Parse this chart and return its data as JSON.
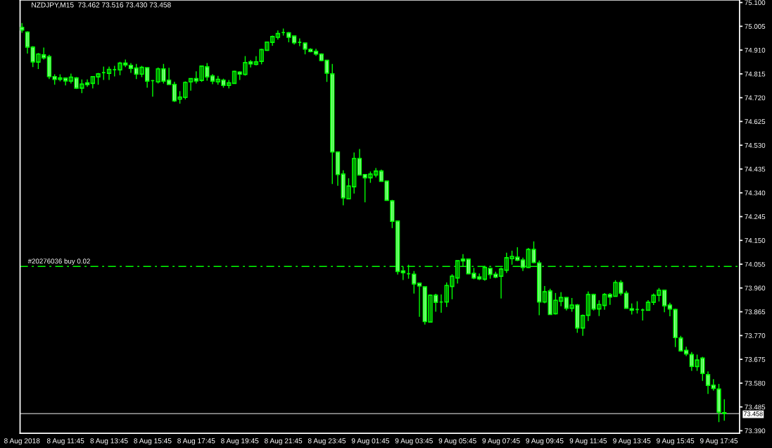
{
  "chart_data": {
    "type": "candlestick",
    "title": "NZDJPY,M15  73.462 73.516 73.430 73.458",
    "color": "#00ff00",
    "categories": [
      "8 Aug 2018",
      null,
      null,
      null,
      null,
      null,
      null,
      null,
      "8 Aug 11:45",
      null,
      null,
      null,
      null,
      null,
      null,
      null,
      "8 Aug 13:45",
      null,
      null,
      null,
      null,
      null,
      null,
      null,
      "8 Aug 15:45",
      null,
      null,
      null,
      null,
      null,
      null,
      null,
      "8 Aug 17:45",
      null,
      null,
      null,
      null,
      null,
      null,
      null,
      "8 Aug 19:45",
      null,
      null,
      null,
      null,
      null,
      null,
      null,
      "8 Aug 21:45",
      null,
      null,
      null,
      null,
      null,
      null,
      null,
      "8 Aug 23:45",
      null,
      null,
      null,
      null,
      null,
      null,
      null,
      "9 Aug 01:45",
      null,
      null,
      null,
      null,
      null,
      null,
      null,
      "9 Aug 03:45",
      null,
      null,
      null,
      null,
      null,
      null,
      null,
      "9 Aug 05:45",
      null,
      null,
      null,
      null,
      null,
      null,
      null,
      "9 Aug 07:45",
      null,
      null,
      null,
      null,
      null,
      null,
      null,
      "9 Aug 09:45",
      null,
      null,
      null,
      null,
      null,
      null,
      null,
      "9 Aug 11:45",
      null,
      null,
      null,
      null,
      null,
      null,
      null,
      "9 Aug 13:45",
      null,
      null,
      null,
      null,
      null,
      null,
      null,
      "9 Aug 15:45",
      null,
      null,
      null,
      null,
      null,
      null,
      null,
      "9 Aug 17:45",
      null
    ],
    "ohlc": [
      [
        75.001,
        75.018,
        74.979,
        74.99
      ],
      [
        74.982,
        74.985,
        74.896,
        74.922
      ],
      [
        74.922,
        74.926,
        74.842,
        74.863
      ],
      [
        74.862,
        74.898,
        74.834,
        74.894
      ],
      [
        74.891,
        74.92,
        74.872,
        74.879
      ],
      [
        74.884,
        74.891,
        74.794,
        74.804
      ],
      [
        74.804,
        74.813,
        74.772,
        74.793
      ],
      [
        74.793,
        74.813,
        74.785,
        74.799
      ],
      [
        74.798,
        74.798,
        74.769,
        74.787
      ],
      [
        74.786,
        74.816,
        74.777,
        74.802
      ],
      [
        74.799,
        74.802,
        74.755,
        74.758
      ],
      [
        74.758,
        74.793,
        74.738,
        74.774
      ],
      [
        74.779,
        74.793,
        74.763,
        74.772
      ],
      [
        74.777,
        74.804,
        74.757,
        74.804
      ],
      [
        74.803,
        74.819,
        74.772,
        74.815
      ],
      [
        74.82,
        74.844,
        74.791,
        74.82
      ],
      [
        74.817,
        74.844,
        74.791,
        74.833
      ],
      [
        74.832,
        74.847,
        74.805,
        74.832
      ],
      [
        74.831,
        74.863,
        74.81,
        74.858
      ],
      [
        74.858,
        74.872,
        74.842,
        74.851
      ],
      [
        74.849,
        74.858,
        74.819,
        74.837
      ],
      [
        74.838,
        74.855,
        74.794,
        74.814
      ],
      [
        74.814,
        74.847,
        74.802,
        74.841
      ],
      [
        74.84,
        74.84,
        74.76,
        74.786
      ],
      [
        74.788,
        74.791,
        74.724,
        74.788
      ],
      [
        74.783,
        74.841,
        74.777,
        74.835
      ],
      [
        74.835,
        74.855,
        74.777,
        74.786
      ],
      [
        74.79,
        74.839,
        74.773,
        74.773
      ],
      [
        74.773,
        74.784,
        74.703,
        74.707
      ],
      [
        74.714,
        74.746,
        74.696,
        74.722
      ],
      [
        74.721,
        74.785,
        74.713,
        74.781
      ],
      [
        74.783,
        74.796,
        74.748,
        74.796
      ],
      [
        74.796,
        74.825,
        74.777,
        74.787
      ],
      [
        74.789,
        74.846,
        74.783,
        74.846
      ],
      [
        74.843,
        74.858,
        74.788,
        74.803
      ],
      [
        74.807,
        74.814,
        74.774,
        74.786
      ],
      [
        74.783,
        74.807,
        74.772,
        74.793
      ],
      [
        74.79,
        74.796,
        74.76,
        74.769
      ],
      [
        74.769,
        74.791,
        74.757,
        74.779
      ],
      [
        74.777,
        74.827,
        74.775,
        74.825
      ],
      [
        74.822,
        74.825,
        74.791,
        74.814
      ],
      [
        74.813,
        74.886,
        74.808,
        74.86
      ],
      [
        74.863,
        74.87,
        74.841,
        74.855
      ],
      [
        74.853,
        74.886,
        74.849,
        74.863
      ],
      [
        74.865,
        74.915,
        74.853,
        74.912
      ],
      [
        74.909,
        74.943,
        74.907,
        74.942
      ],
      [
        74.941,
        74.968,
        74.927,
        74.964
      ],
      [
        74.961,
        74.988,
        74.952,
        74.976
      ],
      [
        74.98,
        74.996,
        74.968,
        74.98
      ],
      [
        74.979,
        74.982,
        74.941,
        74.961
      ],
      [
        74.966,
        74.966,
        74.932,
        74.939
      ],
      [
        74.941,
        74.957,
        74.926,
        74.941
      ],
      [
        74.938,
        74.938,
        74.893,
        74.914
      ],
      [
        74.913,
        74.917,
        74.901,
        74.904
      ],
      [
        74.905,
        74.915,
        74.887,
        74.894
      ],
      [
        74.894,
        74.897,
        74.865,
        74.868
      ],
      [
        74.869,
        74.869,
        74.783,
        74.818
      ],
      [
        74.815,
        74.855,
        74.375,
        74.503
      ],
      [
        74.503,
        74.503,
        74.368,
        74.413
      ],
      [
        74.415,
        74.43,
        74.29,
        74.32
      ],
      [
        74.316,
        74.398,
        74.316,
        74.367
      ],
      [
        74.364,
        74.501,
        74.337,
        74.477
      ],
      [
        74.477,
        74.515,
        74.411,
        74.411
      ],
      [
        74.413,
        74.413,
        74.302,
        74.4
      ],
      [
        74.4,
        74.425,
        74.38,
        74.415
      ],
      [
        74.411,
        74.439,
        74.402,
        74.427
      ],
      [
        74.427,
        74.433,
        74.386,
        74.386
      ],
      [
        74.387,
        74.387,
        74.31,
        74.31
      ],
      [
        74.308,
        74.312,
        74.199,
        74.226
      ],
      [
        74.227,
        74.227,
        74.014,
        74.026
      ],
      [
        74.028,
        74.046,
        73.992,
        74.021
      ],
      [
        74.017,
        74.053,
        73.997,
        74.017
      ],
      [
        74.015,
        74.028,
        73.938,
        73.976
      ],
      [
        73.979,
        73.979,
        73.845,
        73.968
      ],
      [
        73.965,
        73.965,
        73.814,
        73.826
      ],
      [
        73.824,
        73.934,
        73.824,
        73.931
      ],
      [
        73.931,
        73.937,
        73.865,
        73.903
      ],
      [
        73.904,
        73.934,
        73.861,
        73.904
      ],
      [
        73.904,
        73.982,
        73.884,
        73.97
      ],
      [
        73.966,
        74.015,
        73.915,
        74.007
      ],
      [
        74.0,
        74.069,
        73.978,
        74.069
      ],
      [
        74.075,
        74.095,
        74.046,
        74.068
      ],
      [
        74.075,
        74.075,
        74.017,
        74.017
      ],
      [
        74.018,
        74.04,
        73.995,
        74.0
      ],
      [
        74.004,
        74.018,
        73.991,
        73.996
      ],
      [
        73.995,
        74.048,
        73.989,
        74.042
      ],
      [
        74.038,
        74.038,
        73.997,
        74.014
      ],
      [
        74.015,
        74.025,
        73.999,
        74.003
      ],
      [
        74.007,
        74.042,
        73.918,
        74.036
      ],
      [
        74.031,
        74.101,
        74.02,
        74.081
      ],
      [
        74.077,
        74.109,
        74.053,
        74.086
      ],
      [
        74.083,
        74.123,
        74.068,
        74.071
      ],
      [
        74.072,
        74.081,
        74.028,
        74.042
      ],
      [
        74.042,
        74.12,
        74.04,
        74.114
      ],
      [
        74.114,
        74.146,
        74.059,
        74.062
      ],
      [
        74.06,
        74.07,
        73.851,
        73.904
      ],
      [
        73.904,
        73.968,
        73.899,
        73.945
      ],
      [
        73.948,
        73.957,
        73.854,
        73.854
      ],
      [
        73.857,
        73.94,
        73.854,
        73.911
      ],
      [
        73.907,
        73.943,
        73.887,
        73.922
      ],
      [
        73.922,
        73.922,
        73.87,
        73.879
      ],
      [
        73.879,
        73.92,
        73.865,
        73.892
      ],
      [
        73.892,
        73.896,
        73.781,
        73.8
      ],
      [
        73.8,
        73.854,
        73.769,
        73.85
      ],
      [
        73.851,
        73.946,
        73.828,
        73.934
      ],
      [
        73.934,
        73.937,
        73.87,
        73.876
      ],
      [
        73.876,
        73.911,
        73.848,
        73.894
      ],
      [
        73.89,
        73.94,
        73.873,
        73.934
      ],
      [
        73.934,
        73.94,
        73.893,
        73.924
      ],
      [
        73.927,
        73.991,
        73.927,
        73.982
      ],
      [
        73.982,
        73.991,
        73.93,
        73.939
      ],
      [
        73.939,
        73.949,
        73.879,
        73.879
      ],
      [
        73.877,
        73.898,
        73.854,
        73.871
      ],
      [
        73.874,
        73.907,
        73.858,
        73.874
      ],
      [
        73.872,
        73.878,
        73.83,
        73.872
      ],
      [
        73.871,
        73.912,
        73.871,
        73.903
      ],
      [
        73.903,
        73.938,
        73.892,
        73.931
      ],
      [
        73.931,
        73.96,
        73.906,
        73.951
      ],
      [
        73.951,
        73.951,
        73.863,
        73.889
      ],
      [
        73.892,
        73.901,
        73.847,
        73.876
      ],
      [
        73.874,
        73.877,
        73.724,
        73.762
      ],
      [
        73.76,
        73.769,
        73.706,
        73.709
      ],
      [
        73.711,
        73.725,
        73.688,
        73.697
      ],
      [
        73.694,
        73.704,
        73.629,
        73.647
      ],
      [
        73.646,
        73.694,
        73.629,
        73.672
      ],
      [
        73.68,
        73.685,
        73.589,
        73.619
      ],
      [
        73.614,
        73.627,
        73.537,
        73.571
      ],
      [
        73.572,
        73.596,
        73.55,
        73.559
      ],
      [
        73.556,
        73.577,
        73.424,
        73.464
      ],
      [
        73.462,
        73.516,
        73.43,
        73.458
      ]
    ],
    "ylim": [
      73.38,
      75.11
    ],
    "yticks": [
      {
        "value": 75.1,
        "label": "75.100"
      },
      {
        "value": 75.005,
        "label": "75.005"
      },
      {
        "value": 74.91,
        "label": "74.910"
      },
      {
        "value": 74.815,
        "label": "74.815"
      },
      {
        "value": 74.72,
        "label": "74.720"
      },
      {
        "value": 74.625,
        "label": "74.625"
      },
      {
        "value": 74.53,
        "label": "74.530"
      },
      {
        "value": 74.435,
        "label": "74.435"
      },
      {
        "value": 74.34,
        "label": "74.340"
      },
      {
        "value": 74.245,
        "label": "74.245"
      },
      {
        "value": 74.15,
        "label": "74.150"
      },
      {
        "value": 74.055,
        "label": "74.055"
      },
      {
        "value": 73.96,
        "label": "73.960"
      },
      {
        "value": 73.865,
        "label": "73.865"
      },
      {
        "value": 73.77,
        "label": "73.770"
      },
      {
        "value": 73.675,
        "label": "73.675"
      },
      {
        "value": 73.58,
        "label": "73.580"
      },
      {
        "value": 73.485,
        "label": "73.485"
      },
      {
        "value": 73.39,
        "label": "73.390"
      }
    ],
    "ref_lines": [
      {
        "axis": "y",
        "value": 74.046,
        "label": "#20276036 buy 0.02",
        "color": "#00ff00",
        "line_style": "dashed"
      },
      {
        "axis": "y",
        "value": 73.458,
        "label": "73.458",
        "color": "#a0a0a0",
        "line_style": "solid"
      }
    ]
  }
}
